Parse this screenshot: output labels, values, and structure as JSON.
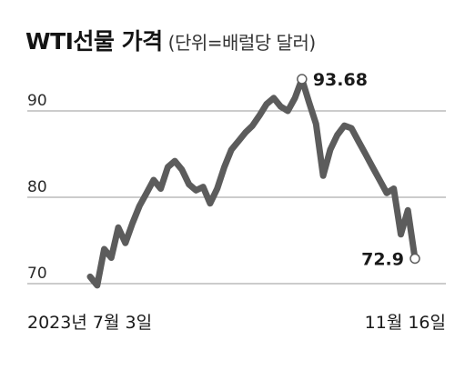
{
  "chart_data": {
    "type": "line",
    "title": "WTI선물 가격",
    "unit": "(단위=배럴당 달러)",
    "yticks": [
      70,
      80,
      90
    ],
    "ylim": [
      69.5,
      99.5
    ],
    "x_start_label": "2023년 7월 3일",
    "x_end_label": "11월 16일",
    "annotations": {
      "peak": {
        "label": "93.68",
        "value": 93.68
      },
      "last": {
        "label": "72.9",
        "value": 72.9
      }
    },
    "series": [
      {
        "values": [
          70.8,
          69.8,
          74.0,
          73.0,
          76.5,
          74.7,
          77.0,
          79.0,
          80.5,
          82.0,
          81.0,
          83.5,
          84.2,
          83.2,
          81.5,
          80.8,
          81.2,
          79.3,
          81.0,
          83.5,
          85.5,
          86.5,
          87.5,
          88.3,
          89.5,
          90.8,
          91.5,
          90.5,
          90.0,
          91.5,
          93.68,
          91.0,
          88.5,
          82.5,
          85.5,
          87.2,
          88.3,
          88.0,
          86.5,
          85.0,
          83.5,
          82.0,
          80.5,
          81.0,
          75.7,
          78.5,
          72.9
        ]
      }
    ],
    "colors": {
      "line": "#5c5c5c",
      "grid": "#999999",
      "marker_fill": "#ffffff",
      "text": "#1a1a1a"
    },
    "grid": true
  }
}
